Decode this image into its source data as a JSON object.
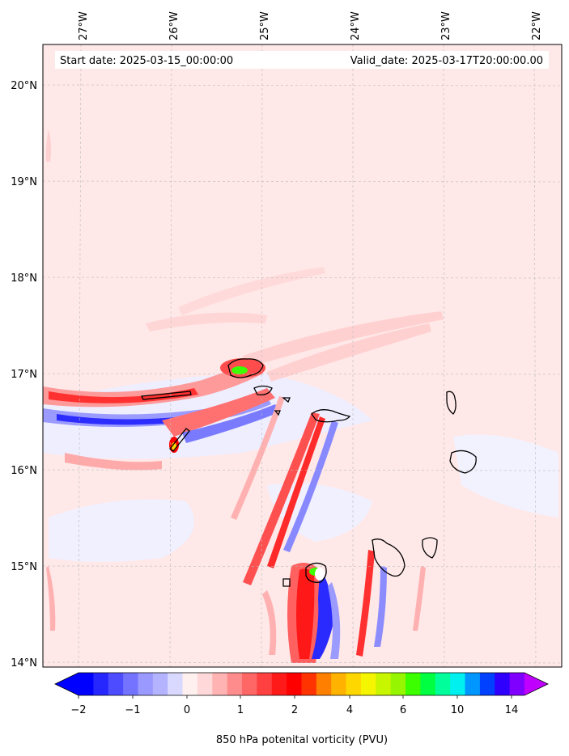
{
  "map": {
    "start_date_label": "Start date: 2025-03-15_00:00:00",
    "valid_date_label": "Valid_date: 2025-03-17T20:00:00.00",
    "lon_ticks": [
      "27°W",
      "26°W",
      "25°W",
      "24°W",
      "23°W",
      "22°W"
    ],
    "lat_ticks": [
      "20°N",
      "19°N",
      "18°N",
      "17°N",
      "16°N",
      "15°N",
      "14°N"
    ],
    "background_color": "#ffe8e8",
    "gridlines": true
  },
  "colorbar": {
    "title": "850 hPa potenital vorticity (PVU)",
    "tick_labels": [
      "−2",
      "−1",
      "0",
      "1",
      "2",
      "4",
      "6",
      "10",
      "14"
    ],
    "colors": [
      "#0000ff",
      "#2626ff",
      "#4d4dff",
      "#7373ff",
      "#9999ff",
      "#b3b3ff",
      "#d9d9ff",
      "#fff0f0",
      "#ffd9d9",
      "#ffb3b3",
      "#ff8c8c",
      "#ff6666",
      "#ff4040",
      "#ff1a1a",
      "#ff0000",
      "#ff3300",
      "#ff8000",
      "#ffb300",
      "#ffd700",
      "#f5f500",
      "#c8f500",
      "#96f500",
      "#3cff00",
      "#00ff40",
      "#00ff9b",
      "#00f0f0",
      "#0096ff",
      "#0040ff",
      "#3000ff",
      "#8000ff"
    ],
    "extend_low_color": "#0000ff",
    "extend_high_color": "#c000ff"
  }
}
